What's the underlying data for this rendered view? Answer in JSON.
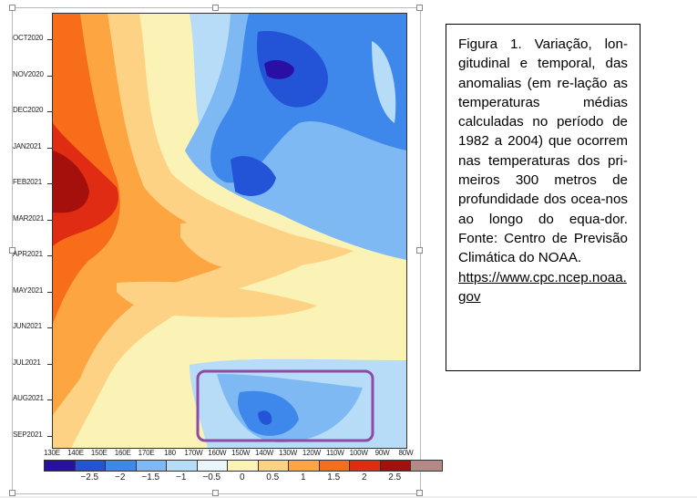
{
  "figure": {
    "y_labels": [
      "OCT2020",
      "NOV2020",
      "DEC2020",
      "JAN2021",
      "FEB2021",
      "MAR2021",
      "APR2021",
      "MAY2021",
      "JUN2021",
      "JUL2021",
      "AUG2021",
      "SEP2021"
    ],
    "x_labels": [
      "130E",
      "140E",
      "150E",
      "160E",
      "170E",
      "180",
      "170W",
      "160W",
      "150W",
      "140W",
      "130W",
      "120W",
      "110W",
      "100W",
      "90W",
      "80W"
    ],
    "colorbar_colors": [
      "#2a0fa5",
      "#2353d6",
      "#3d88ea",
      "#7fb9f3",
      "#b7dcf7",
      "#e9f7fb",
      "#fbf3b5",
      "#fdd284",
      "#fda541",
      "#f76d1a",
      "#e02c12",
      "#a50f0c",
      "#b48a86"
    ],
    "colorbar_labels": [
      "−2.5",
      "−2",
      "−1.5",
      "−1",
      "−0.5",
      "0",
      "0.5",
      "1",
      "1.5",
      "2",
      "2.5"
    ],
    "highlight_color": "#8e4aa6"
  },
  "caption": {
    "text": "Figura 1. Variação, lon-gitudinal e temporal, das anomalias (em re-lação as temperaturas médias calculadas no período de 1982 a 2004) que ocorrem nas temperaturas dos pri-meiros 300 metros de profundidade dos ocea-nos ao longo do equa-dor. Fonte: Centro de Previsão Climática do NOAA.",
    "link": "https://www.cpc.ncep.noaa.gov"
  }
}
